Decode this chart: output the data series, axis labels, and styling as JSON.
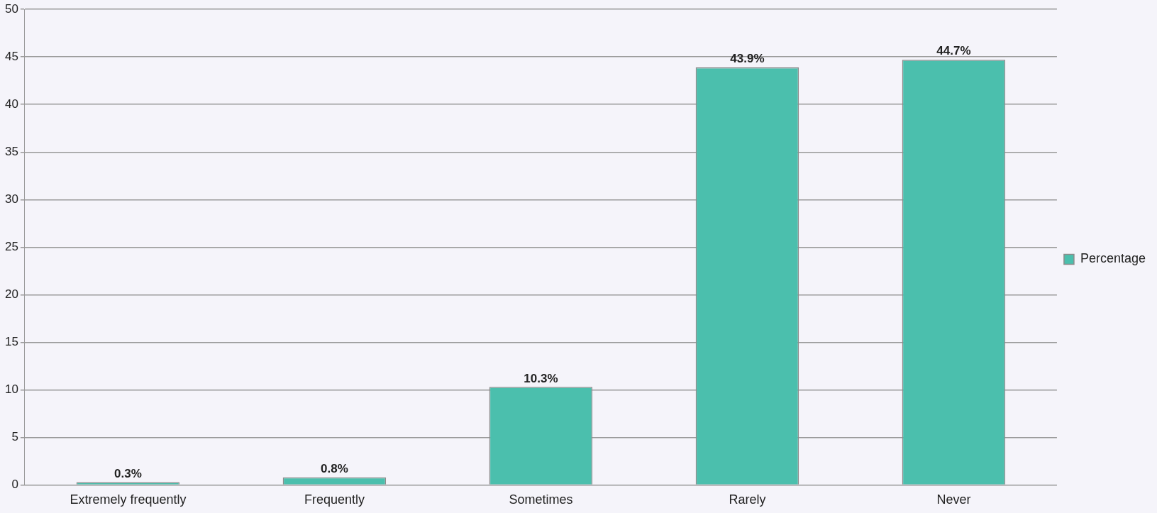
{
  "chart_data": {
    "type": "bar",
    "categories": [
      "Extremely frequently",
      "Frequently",
      "Sometimes",
      "Rarely",
      "Never"
    ],
    "series": [
      {
        "name": "Percentage",
        "color": "#4bbfad",
        "values": [
          0.3,
          0.8,
          10.3,
          43.9,
          44.7
        ],
        "value_labels": [
          "0.3%",
          "0.8%",
          "10.3%",
          "43.9%",
          "44.7%"
        ]
      }
    ],
    "ylim": [
      0,
      50
    ],
    "yticks": [
      0,
      5,
      10,
      15,
      20,
      25,
      30,
      35,
      40,
      45,
      50
    ],
    "grid": "y",
    "legend": "right"
  }
}
